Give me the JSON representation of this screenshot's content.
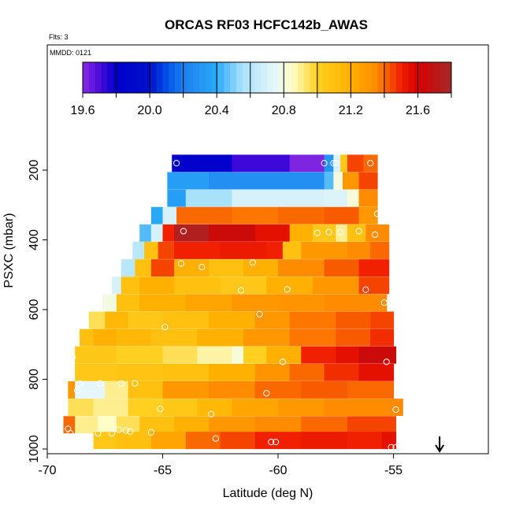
{
  "chart_data": {
    "type": "heatmap",
    "title": "ORCAS RF03 HCFC142b_AWAS",
    "flights_label": "Flts: 3",
    "date_label": "MMDD: 0121",
    "xlabel": "Latitude (deg N)",
    "ylabel": "PSXC (mbar)",
    "xlim": [
      -70,
      -50.8
    ],
    "ylim": [
      1000,
      100
    ],
    "x_ticks": [
      -70,
      -65,
      -60,
      -55
    ],
    "x_tick_labels": [
      "-70",
      "-65",
      "-60",
      "-55"
    ],
    "y_ticks": [
      200,
      400,
      600,
      800,
      1000
    ],
    "y_tick_labels": [
      "200",
      "400",
      "600",
      "800",
      "1000"
    ],
    "colorbar": {
      "min": 19.6,
      "max": 21.8,
      "ticks": [
        19.6,
        20.0,
        20.4,
        20.8,
        21.2,
        21.6
      ],
      "tick_labels": [
        "19.6",
        "20.0",
        "20.4",
        "20.8",
        "21.2",
        "21.6"
      ],
      "stops": [
        [
          19.6,
          "#8a2be2"
        ],
        [
          19.7,
          "#4b0bdc"
        ],
        [
          19.8,
          "#0000cc"
        ],
        [
          20.0,
          "#0010c8"
        ],
        [
          20.1,
          "#0050e8"
        ],
        [
          20.2,
          "#1e7ff0"
        ],
        [
          20.4,
          "#2aa8f8"
        ],
        [
          20.55,
          "#a8e2fa"
        ],
        [
          20.75,
          "#e6f6fa"
        ],
        [
          20.85,
          "#fffdc8"
        ],
        [
          21.0,
          "#ffd020"
        ],
        [
          21.2,
          "#ffb000"
        ],
        [
          21.35,
          "#ff8c00"
        ],
        [
          21.5,
          "#f02000"
        ],
        [
          21.6,
          "#d80000"
        ],
        [
          21.8,
          "#a52a2a"
        ]
      ]
    },
    "bands": [
      {
        "p_center": 180,
        "lat_start": -64.6,
        "lat_end": -55.7,
        "segments": [
          [
            -64.6,
            19.82
          ],
          [
            -62.0,
            19.72
          ],
          [
            -59.5,
            19.62
          ],
          [
            -58.0,
            20.3
          ],
          [
            -57.6,
            20.7
          ],
          [
            -57.3,
            21.05
          ],
          [
            -57.0,
            21.45
          ],
          [
            -56.3,
            21.4
          ]
        ]
      },
      {
        "p_center": 230,
        "lat_start": -64.8,
        "lat_end": -55.7,
        "segments": [
          [
            -64.8,
            20.35
          ],
          [
            -63.0,
            20.28
          ],
          [
            -58.0,
            20.45
          ],
          [
            -57.6,
            20.8
          ],
          [
            -57.2,
            21.3
          ],
          [
            -56.5,
            21.45
          ]
        ]
      },
      {
        "p_center": 280,
        "lat_start": -64.8,
        "lat_end": -55.7,
        "segments": [
          [
            -64.8,
            20.35
          ],
          [
            -64.0,
            20.55
          ],
          [
            -62.0,
            20.7
          ],
          [
            -58.0,
            20.72
          ],
          [
            -57.0,
            20.82
          ],
          [
            -56.5,
            21.35
          ]
        ]
      },
      {
        "p_center": 330,
        "lat_start": -65.5,
        "lat_end": -55.7,
        "segments": [
          [
            -65.5,
            20.4
          ],
          [
            -65.0,
            20.7
          ],
          [
            -64.4,
            21.4
          ],
          [
            -62.0,
            21.38
          ],
          [
            -60.0,
            21.4
          ],
          [
            -58.0,
            21.42
          ],
          [
            -56.5,
            21.3
          ]
        ]
      },
      {
        "p_center": 380,
        "lat_start": -66.0,
        "lat_end": -55.2,
        "segments": [
          [
            -66.0,
            20.45
          ],
          [
            -65.5,
            20.7
          ],
          [
            -65.0,
            21.5
          ],
          [
            -64.5,
            21.75
          ],
          [
            -63.0,
            21.65
          ],
          [
            -61.0,
            21.55
          ],
          [
            -59.5,
            21.2
          ],
          [
            -58.5,
            21.05
          ],
          [
            -57.5,
            20.9
          ],
          [
            -57.0,
            21.1
          ],
          [
            -56.2,
            21.35
          ]
        ]
      },
      {
        "p_center": 430,
        "lat_start": -66.3,
        "lat_end": -55.2,
        "segments": [
          [
            -66.3,
            20.6
          ],
          [
            -65.8,
            21.1
          ],
          [
            -65.2,
            21.45
          ],
          [
            -64.5,
            21.5
          ],
          [
            -62.5,
            21.52
          ],
          [
            -60.5,
            21.5
          ],
          [
            -59.8,
            21.1
          ],
          [
            -59.0,
            21.3
          ],
          [
            -57.0,
            21.35
          ],
          [
            -56.0,
            21.4
          ]
        ]
      },
      {
        "p_center": 480,
        "lat_start": -66.8,
        "lat_end": -55.2,
        "segments": [
          [
            -66.8,
            20.6
          ],
          [
            -66.2,
            21.1
          ],
          [
            -65.5,
            21.45
          ],
          [
            -64.5,
            21.2
          ],
          [
            -63.0,
            21.1
          ],
          [
            -61.5,
            21.2
          ],
          [
            -60.0,
            21.35
          ],
          [
            -58.0,
            21.42
          ],
          [
            -56.5,
            21.5
          ]
        ]
      },
      {
        "p_center": 530,
        "lat_start": -67.2,
        "lat_end": -55.2,
        "segments": [
          [
            -67.2,
            20.7
          ],
          [
            -66.8,
            21.1
          ],
          [
            -66.0,
            21.2
          ],
          [
            -64.5,
            21.1
          ],
          [
            -62.5,
            21.05
          ],
          [
            -60.5,
            21.2
          ],
          [
            -58.5,
            21.3
          ],
          [
            -56.5,
            21.45
          ]
        ]
      },
      {
        "p_center": 580,
        "lat_start": -67.6,
        "lat_end": -55.3,
        "segments": [
          [
            -67.6,
            20.8
          ],
          [
            -67.0,
            21.1
          ],
          [
            -66.0,
            21.2
          ],
          [
            -64.0,
            21.25
          ],
          [
            -62.0,
            21.3
          ],
          [
            -60.0,
            21.32
          ],
          [
            -58.0,
            21.35
          ],
          [
            -56.0,
            21.35
          ]
        ]
      },
      {
        "p_center": 630,
        "lat_start": -68.2,
        "lat_end": -55.0,
        "segments": [
          [
            -68.2,
            20.95
          ],
          [
            -67.5,
            21.15
          ],
          [
            -66.5,
            21.05
          ],
          [
            -65.0,
            21.1
          ],
          [
            -63.0,
            21.2
          ],
          [
            -61.0,
            21.3
          ],
          [
            -59.5,
            21.38
          ],
          [
            -57.5,
            21.42
          ],
          [
            -56.0,
            21.45
          ]
        ]
      },
      {
        "p_center": 680,
        "lat_start": -68.6,
        "lat_end": -55.0,
        "segments": [
          [
            -68.6,
            21.1
          ],
          [
            -68.0,
            21.2
          ],
          [
            -67.0,
            21.15
          ],
          [
            -65.5,
            21.1
          ],
          [
            -63.5,
            21.2
          ],
          [
            -61.5,
            21.3
          ],
          [
            -59.5,
            21.38
          ],
          [
            -57.5,
            21.42
          ],
          [
            -56.0,
            21.48
          ]
        ]
      },
      {
        "p_center": 730,
        "lat_start": -68.8,
        "lat_end": -54.9,
        "segments": [
          [
            -68.8,
            21.05
          ],
          [
            -67.0,
            21.0
          ],
          [
            -65.0,
            20.95
          ],
          [
            -63.5,
            20.88
          ],
          [
            -62.0,
            20.82
          ],
          [
            -61.5,
            21.0
          ],
          [
            -60.5,
            21.2
          ],
          [
            -59.0,
            21.5
          ],
          [
            -57.5,
            21.55
          ],
          [
            -56.5,
            21.65
          ]
        ]
      },
      {
        "p_center": 780,
        "lat_start": -68.8,
        "lat_end": -55.0,
        "segments": [
          [
            -68.8,
            21.05
          ],
          [
            -67.0,
            21.08
          ],
          [
            -65.0,
            21.1
          ],
          [
            -63.0,
            21.2
          ],
          [
            -61.0,
            21.32
          ],
          [
            -59.5,
            21.4
          ],
          [
            -58.0,
            21.48
          ],
          [
            -56.5,
            21.55
          ]
        ]
      },
      {
        "p_center": 830,
        "lat_start": -69.1,
        "lat_end": -55.0,
        "segments": [
          [
            -69.1,
            21.3
          ],
          [
            -68.8,
            20.75
          ],
          [
            -67.5,
            20.9
          ],
          [
            -66.5,
            21.1
          ],
          [
            -65.0,
            21.3
          ],
          [
            -63.0,
            21.35
          ],
          [
            -61.0,
            21.4
          ],
          [
            -59.0,
            21.42
          ],
          [
            -57.0,
            21.4
          ]
        ]
      },
      {
        "p_center": 880,
        "lat_start": -69.1,
        "lat_end": -54.6,
        "segments": [
          [
            -69.1,
            20.95
          ],
          [
            -68.0,
            20.9
          ],
          [
            -66.5,
            21.0
          ],
          [
            -65.0,
            21.05
          ],
          [
            -63.5,
            21.15
          ],
          [
            -62.0,
            21.25
          ],
          [
            -60.0,
            21.3
          ],
          [
            -58.0,
            21.35
          ],
          [
            -56.0,
            21.35
          ]
        ]
      },
      {
        "p_center": 930,
        "lat_start": -69.3,
        "lat_end": -54.9,
        "segments": [
          [
            -69.3,
            21.4
          ],
          [
            -68.8,
            20.9
          ],
          [
            -67.8,
            20.85
          ],
          [
            -67.0,
            20.95
          ],
          [
            -66.0,
            21.1
          ],
          [
            -64.5,
            21.2
          ],
          [
            -63.0,
            21.3
          ],
          [
            -61.0,
            21.35
          ],
          [
            -59.0,
            21.4
          ],
          [
            -57.0,
            21.45
          ]
        ]
      },
      {
        "p_center": 975,
        "lat_start": -68.0,
        "lat_end": -54.9,
        "segments": [
          [
            -68.0,
            21.05
          ],
          [
            -67.0,
            21.1
          ],
          [
            -65.5,
            21.25
          ],
          [
            -64.0,
            21.4
          ],
          [
            -62.5,
            21.45
          ],
          [
            -61.0,
            21.5
          ],
          [
            -59.0,
            21.52
          ],
          [
            -57.0,
            21.5
          ],
          [
            -55.5,
            21.55
          ]
        ]
      }
    ],
    "points": [
      {
        "lat": -64.4,
        "p": 180
      },
      {
        "lat": -58.0,
        "p": 180
      },
      {
        "lat": -57.6,
        "p": 180
      },
      {
        "lat": -57.5,
        "p": 180
      },
      {
        "lat": -56.0,
        "p": 180
      },
      {
        "lat": -55.7,
        "p": 325
      },
      {
        "lat": -64.1,
        "p": 375
      },
      {
        "lat": -58.3,
        "p": 380
      },
      {
        "lat": -57.8,
        "p": 378
      },
      {
        "lat": -57.3,
        "p": 378
      },
      {
        "lat": -56.5,
        "p": 375
      },
      {
        "lat": -55.8,
        "p": 385
      },
      {
        "lat": -64.2,
        "p": 468
      },
      {
        "lat": -63.3,
        "p": 478
      },
      {
        "lat": -61.1,
        "p": 465
      },
      {
        "lat": -61.6,
        "p": 545
      },
      {
        "lat": -59.6,
        "p": 542
      },
      {
        "lat": -56.2,
        "p": 543
      },
      {
        "lat": -55.4,
        "p": 580
      },
      {
        "lat": -60.8,
        "p": 613
      },
      {
        "lat": -64.9,
        "p": 650
      },
      {
        "lat": -68.9,
        "p": 737
      },
      {
        "lat": -59.8,
        "p": 750
      },
      {
        "lat": -55.3,
        "p": 750
      },
      {
        "lat": -68.6,
        "p": 812
      },
      {
        "lat": -67.7,
        "p": 812
      },
      {
        "lat": -66.8,
        "p": 812
      },
      {
        "lat": -66.2,
        "p": 812
      },
      {
        "lat": -68.7,
        "p": 832
      },
      {
        "lat": -60.5,
        "p": 840
      },
      {
        "lat": -65.1,
        "p": 885
      },
      {
        "lat": -62.9,
        "p": 900
      },
      {
        "lat": -54.9,
        "p": 887
      },
      {
        "lat": -69.1,
        "p": 942
      },
      {
        "lat": -67.8,
        "p": 955
      },
      {
        "lat": -67.2,
        "p": 955
      },
      {
        "lat": -66.9,
        "p": 945
      },
      {
        "lat": -66.6,
        "p": 947
      },
      {
        "lat": -66.4,
        "p": 950
      },
      {
        "lat": -65.5,
        "p": 952
      },
      {
        "lat": -69.0,
        "p": 955
      },
      {
        "lat": -62.7,
        "p": 970
      },
      {
        "lat": -60.3,
        "p": 980
      },
      {
        "lat": -60.1,
        "p": 980
      },
      {
        "lat": -55.1,
        "p": 995
      },
      {
        "lat": -54.9,
        "p": 995
      }
    ],
    "marker": {
      "lat": -53.0,
      "p": 1000,
      "type": "down-arrow"
    }
  }
}
